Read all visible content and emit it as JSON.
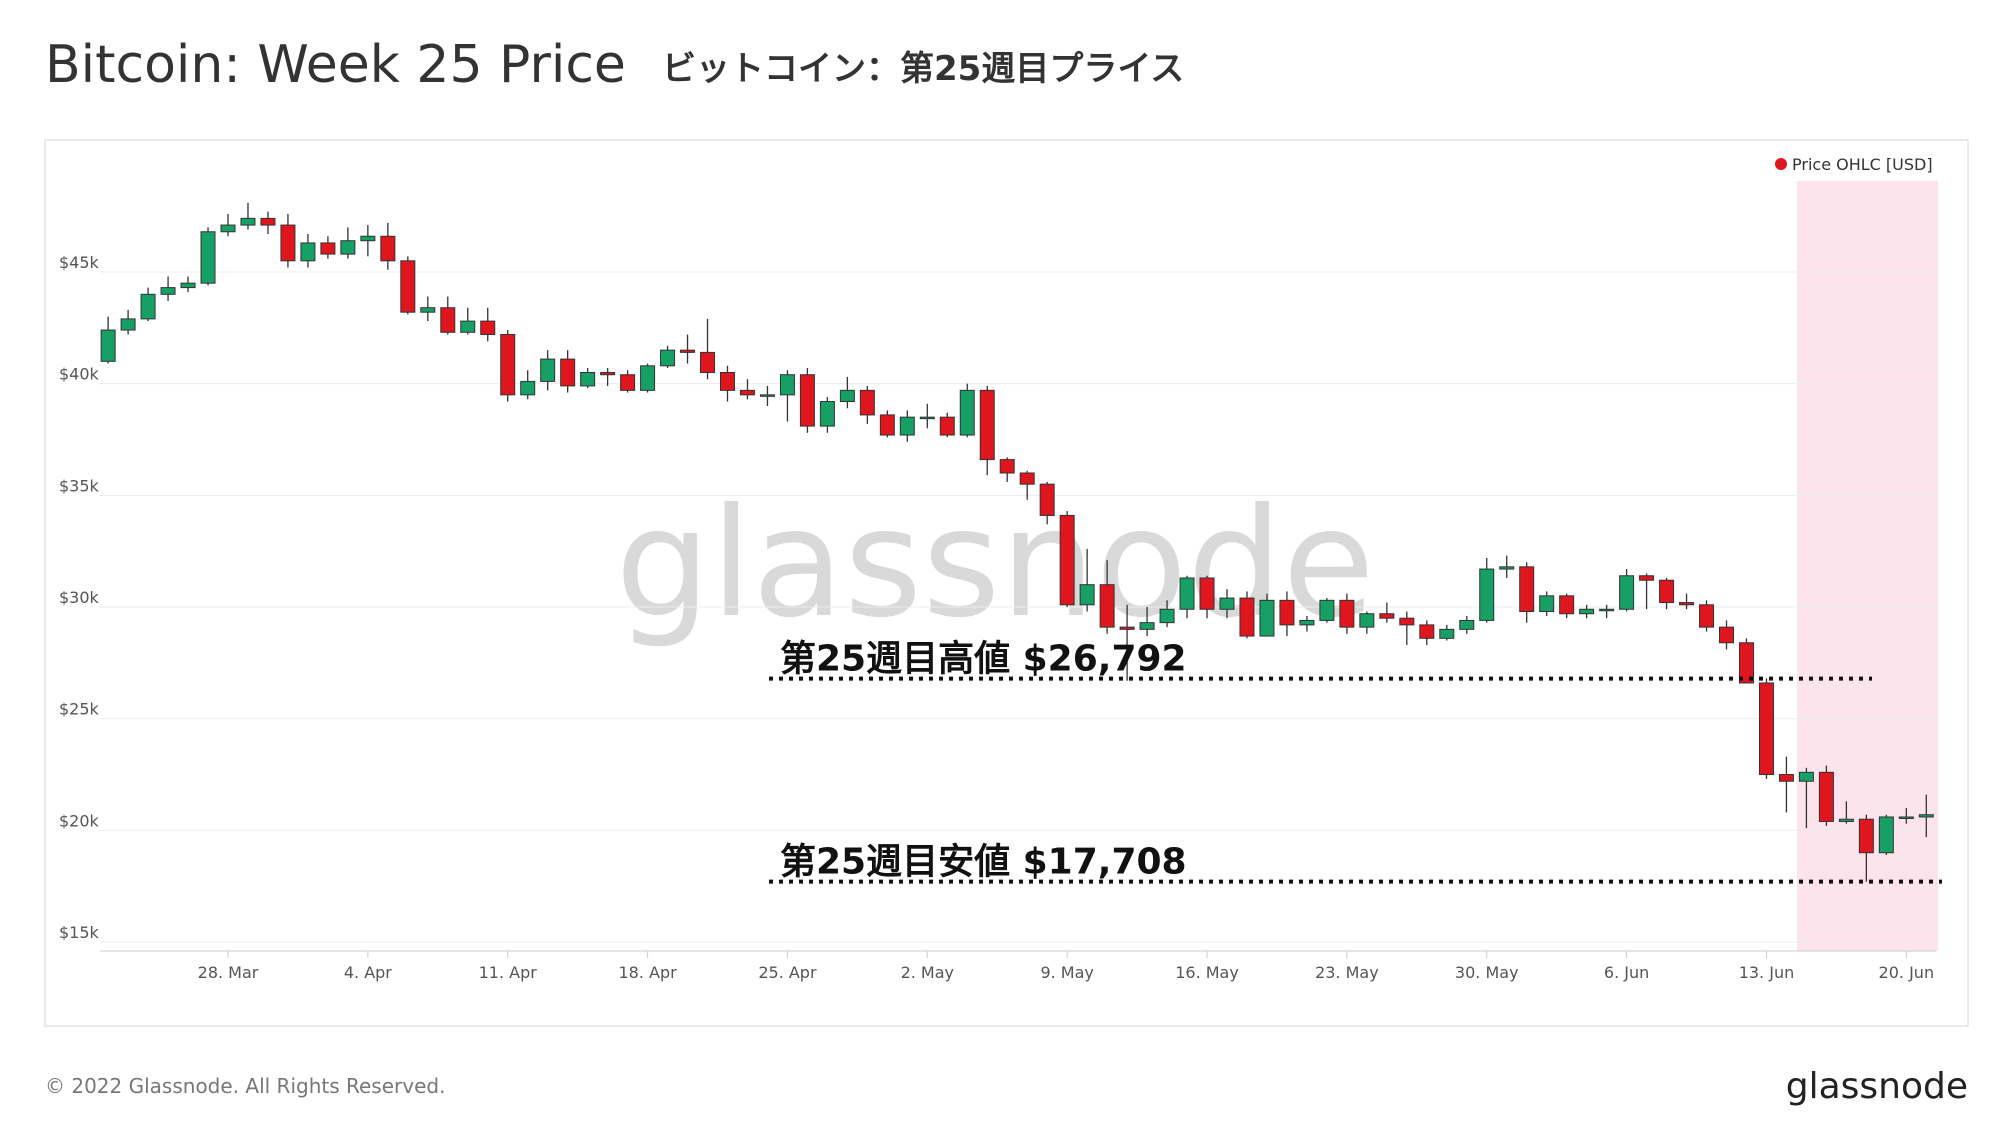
{
  "title": "Bitcoin: Week 25 Price",
  "subtitle": "ビットコイン：第25週目プライス",
  "footer": "© 2022 Glassnode. All Rights Reserved.",
  "logo": "glassnode",
  "chart_data": {
    "type": "candlestick",
    "watermark": "glassnode",
    "grid": true,
    "legend": "top-right",
    "x": [
      "22. Mar",
      "23. Mar",
      "24. Mar",
      "25. Mar",
      "26. Mar",
      "27. Mar",
      "28. Mar",
      "29. Mar",
      "30. Mar",
      "31. Mar",
      "1. Apr",
      "2. Apr",
      "3. Apr",
      "4. Apr",
      "5. Apr",
      "6. Apr",
      "7. Apr",
      "8. Apr",
      "9. Apr",
      "10. Apr",
      "11. Apr",
      "12. Apr",
      "13. Apr",
      "14. Apr",
      "15. Apr",
      "16. Apr",
      "17. Apr",
      "18. Apr",
      "19. Apr",
      "20. Apr",
      "21. Apr",
      "22. Apr",
      "23. Apr",
      "24. Apr",
      "25. Apr",
      "26. Apr",
      "27. Apr",
      "28. Apr",
      "29. Apr",
      "30. Apr",
      "1. May",
      "2. May",
      "3. May",
      "4. May",
      "5. May",
      "6. May",
      "7. May",
      "8. May",
      "9. May",
      "10. May",
      "11. May",
      "12. May",
      "13. May",
      "14. May",
      "15. May",
      "16. May",
      "17. May",
      "18. May",
      "19. May",
      "20. May",
      "21. May",
      "22. May",
      "23. May",
      "24. May",
      "25. May",
      "26. May",
      "27. May",
      "28. May",
      "29. May",
      "30. May",
      "31. May",
      "1. Jun",
      "2. Jun",
      "3. Jun",
      "4. Jun",
      "5. Jun",
      "6. Jun",
      "7. Jun",
      "8. Jun",
      "9. Jun",
      "10. Jun",
      "11. Jun",
      "12. Jun",
      "13. Jun",
      "14. Jun",
      "15. Jun",
      "16. Jun",
      "17. Jun",
      "18. Jun",
      "19. Jun",
      "20. Jun",
      "21. Jun"
    ],
    "xticks": [
      "28. Mar",
      "4. Apr",
      "11. Apr",
      "18. Apr",
      "25. Apr",
      "2. May",
      "9. May",
      "16. May",
      "23. May",
      "30. May",
      "6. Jun",
      "13. Jun",
      "20. Jun"
    ],
    "ylim": [
      14600,
      49700
    ],
    "yticks": [
      {
        "value": 15000,
        "label": "$15k"
      },
      {
        "value": 20000,
        "label": "$20k"
      },
      {
        "value": 25000,
        "label": "$25k"
      },
      {
        "value": 30000,
        "label": "$30k"
      },
      {
        "value": 35000,
        "label": "$35k"
      },
      {
        "value": 40000,
        "label": "$40k"
      },
      {
        "value": 45000,
        "label": "$45k"
      }
    ],
    "series": [
      {
        "name": "Price OHLC [USD]",
        "color": "#e0161e",
        "up_color": "#17a066",
        "open": [
          41000,
          42400,
          42900,
          44000,
          44300,
          44500,
          46800,
          47100,
          47400,
          47100,
          45500,
          46300,
          45800,
          46400,
          46600,
          45500,
          43200,
          43400,
          42300,
          42800,
          42200,
          39500,
          40100,
          41100,
          39900,
          40500,
          40400,
          39700,
          40800,
          41500,
          41400,
          40500,
          39700,
          39500,
          39500,
          40400,
          38100,
          39200,
          39700,
          38600,
          37700,
          38500,
          38500,
          37700,
          39700,
          36600,
          36000,
          35500,
          34100,
          30100,
          31000,
          29100,
          29000,
          29300,
          29900,
          31300,
          29900,
          30400,
          28700,
          30300,
          29200,
          29400,
          30300,
          29100,
          29700,
          29500,
          29200,
          28600,
          29000,
          29400,
          31700,
          31800,
          29800,
          30500,
          29700,
          29900,
          29900,
          31400,
          31200,
          30200,
          30100,
          29100,
          28400,
          26600,
          22500,
          22200,
          22600,
          20400,
          20500,
          19000,
          20600,
          20600
        ],
        "high": [
          43000,
          43300,
          44300,
          44800,
          44800,
          47000,
          47600,
          48100,
          47700,
          47600,
          46700,
          46600,
          47000,
          47100,
          47200,
          45700,
          43900,
          43900,
          43400,
          43400,
          42400,
          40600,
          41500,
          41500,
          40700,
          40700,
          40600,
          40900,
          41700,
          42200,
          42900,
          40800,
          40200,
          39900,
          40600,
          40700,
          39400,
          40300,
          39900,
          38800,
          38800,
          39100,
          38700,
          40000,
          39900,
          36700,
          36100,
          35600,
          34300,
          32600,
          32100,
          30100,
          30000,
          30300,
          31400,
          31400,
          30800,
          30700,
          30600,
          30700,
          29600,
          30400,
          30600,
          29800,
          30200,
          29800,
          29400,
          29200,
          29600,
          32200,
          32300,
          32000,
          30700,
          30600,
          30100,
          30100,
          31700,
          31500,
          31300,
          30600,
          30300,
          29400,
          28600,
          26800,
          23300,
          22800,
          22900,
          21300,
          20700,
          20700,
          21000,
          21600
        ],
        "low": [
          40900,
          42200,
          42800,
          43700,
          44100,
          44400,
          46600,
          46900,
          46700,
          45200,
          45200,
          45600,
          45600,
          45700,
          45100,
          43100,
          42800,
          42200,
          42200,
          41900,
          39200,
          39300,
          39700,
          39600,
          39800,
          39900,
          39600,
          39600,
          40700,
          40900,
          40200,
          39200,
          39300,
          39000,
          38300,
          37800,
          37800,
          38900,
          38200,
          37600,
          37400,
          38000,
          37600,
          37600,
          35900,
          35600,
          34800,
          33700,
          30000,
          29800,
          28800,
          26700,
          28700,
          29100,
          29500,
          29500,
          29500,
          28600,
          28700,
          28700,
          28900,
          29300,
          28800,
          28800,
          29300,
          28300,
          28300,
          28500,
          28800,
          29300,
          31300,
          29300,
          29600,
          29500,
          29500,
          29500,
          29800,
          29900,
          29900,
          29900,
          28900,
          28100,
          26600,
          22300,
          20800,
          20100,
          20200,
          20300,
          17700,
          18900,
          20300,
          19700
        ],
        "close": [
          42400,
          42900,
          44000,
          44300,
          44500,
          46800,
          47100,
          47400,
          47100,
          45500,
          46300,
          45800,
          46400,
          46600,
          45500,
          43200,
          43400,
          42300,
          42800,
          42200,
          39500,
          40100,
          41100,
          39900,
          40500,
          40400,
          39700,
          40800,
          41500,
          41400,
          40500,
          39700,
          39500,
          39500,
          40400,
          38100,
          39200,
          39700,
          38600,
          37700,
          38500,
          38500,
          37700,
          39700,
          36600,
          36000,
          35500,
          34100,
          30100,
          31000,
          29100,
          29000,
          29300,
          29900,
          31300,
          29900,
          30400,
          28700,
          30300,
          29200,
          29400,
          30300,
          29100,
          29700,
          29500,
          29200,
          28600,
          29000,
          29400,
          31700,
          31800,
          29800,
          30500,
          29700,
          29900,
          29900,
          31400,
          31200,
          30200,
          30100,
          29100,
          28400,
          26600,
          22500,
          22200,
          22600,
          20400,
          20500,
          19000,
          20600,
          20600,
          20700
        ]
      }
    ],
    "annotations": [
      {
        "text": "第25週目高値 $26,792",
        "value": 26792
      },
      {
        "text": "第25週目安値 $17,708",
        "value": 17708
      }
    ]
  }
}
